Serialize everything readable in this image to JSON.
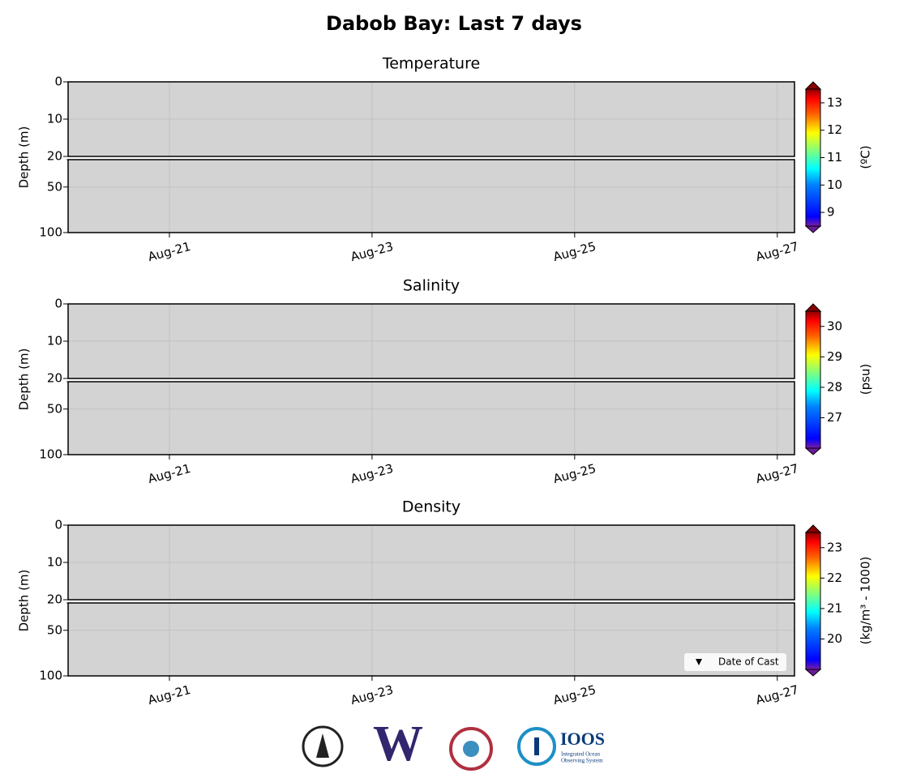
{
  "title": "Dabob Bay: Last 7 days",
  "logos": {
    "uw": "W",
    "ioos": "IOOS",
    "ioos_line1": "Integrated Ocean",
    "ioos_line2": "Observing System"
  },
  "chart_data": [
    {
      "type": "heatmap",
      "title": "Temperature",
      "ylabel": "Depth (m)",
      "background": "#d3d3d3",
      "grid": true,
      "xlim": [
        20,
        27.17
      ],
      "xticks": [
        {
          "value": 21,
          "label": "Aug-21"
        },
        {
          "value": 23,
          "label": "Aug-23"
        },
        {
          "value": 25,
          "label": "Aug-25"
        },
        {
          "value": 27,
          "label": "Aug-27"
        }
      ],
      "y_segments": [
        {
          "ylim": [
            0,
            20
          ],
          "yticks": [
            0,
            10,
            20
          ]
        },
        {
          "ylim": [
            20,
            100
          ],
          "yticks": [
            50,
            100
          ]
        }
      ],
      "colorbar": {
        "label": "(ºC)",
        "clim": [
          8.5,
          13.5
        ],
        "ticks": [
          9,
          10,
          11,
          12,
          13
        ],
        "colormap": "jet",
        "extend": "both"
      }
    },
    {
      "type": "heatmap",
      "title": "Salinity",
      "ylabel": "Depth (m)",
      "background": "#d3d3d3",
      "grid": true,
      "xlim": [
        20,
        27.17
      ],
      "xticks": [
        {
          "value": 21,
          "label": "Aug-21"
        },
        {
          "value": 23,
          "label": "Aug-23"
        },
        {
          "value": 25,
          "label": "Aug-25"
        },
        {
          "value": 27,
          "label": "Aug-27"
        }
      ],
      "y_segments": [
        {
          "ylim": [
            0,
            20
          ],
          "yticks": [
            0,
            10,
            20
          ]
        },
        {
          "ylim": [
            20,
            100
          ],
          "yticks": [
            50,
            100
          ]
        }
      ],
      "colorbar": {
        "label": "(psu)",
        "clim": [
          26,
          30.5
        ],
        "ticks": [
          27,
          28,
          29,
          30
        ],
        "colormap": "jet",
        "extend": "both"
      }
    },
    {
      "type": "heatmap",
      "title": "Density",
      "ylabel": "Depth (m)",
      "background": "#d3d3d3",
      "grid": true,
      "xlim": [
        20,
        27.17
      ],
      "xticks": [
        {
          "value": 21,
          "label": "Aug-21"
        },
        {
          "value": 23,
          "label": "Aug-23"
        },
        {
          "value": 25,
          "label": "Aug-25"
        },
        {
          "value": 27,
          "label": "Aug-27"
        }
      ],
      "y_segments": [
        {
          "ylim": [
            0,
            20
          ],
          "yticks": [
            0,
            10,
            20
          ]
        },
        {
          "ylim": [
            20,
            100
          ],
          "yticks": [
            50,
            100
          ]
        }
      ],
      "colorbar": {
        "label": "(kg/m³ - 1000)",
        "clim": [
          19,
          23.5
        ],
        "ticks": [
          20,
          21,
          22,
          23
        ],
        "colormap": "jet",
        "extend": "both"
      },
      "series": [
        {
          "name": "Date of Cast",
          "color": "#000000",
          "marker": "triangle-down",
          "values": []
        }
      ],
      "legend": "lower right"
    }
  ]
}
